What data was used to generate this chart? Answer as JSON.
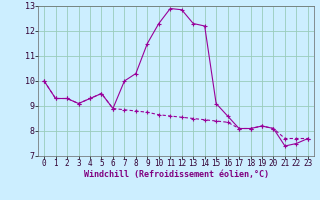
{
  "hours": [
    0,
    1,
    2,
    3,
    4,
    5,
    6,
    7,
    8,
    9,
    10,
    11,
    12,
    13,
    14,
    15,
    16,
    17,
    18,
    19,
    20,
    21,
    22,
    23
  ],
  "curve1": [
    10.0,
    9.3,
    9.3,
    9.1,
    9.3,
    9.5,
    8.9,
    10.0,
    10.3,
    11.5,
    12.3,
    12.9,
    12.85,
    12.3,
    12.2,
    9.1,
    8.6,
    8.1,
    8.1,
    8.2,
    8.1,
    7.4,
    7.5,
    7.7
  ],
  "curve2": [
    10.0,
    9.3,
    9.3,
    9.1,
    9.3,
    9.5,
    8.9,
    8.85,
    8.8,
    8.75,
    8.65,
    8.6,
    8.55,
    8.5,
    8.45,
    8.4,
    8.35,
    8.1,
    8.1,
    8.2,
    8.1,
    7.7,
    7.7,
    7.7
  ],
  "line_color": "#990099",
  "bg_color": "#cceeff",
  "grid_color": "#99ccbb",
  "xlabel": "Windchill (Refroidissement éolien,°C)",
  "ylim": [
    7,
    13
  ],
  "xlim": [
    -0.5,
    23.5
  ],
  "yticks": [
    7,
    8,
    9,
    10,
    11,
    12,
    13
  ],
  "xticks": [
    0,
    1,
    2,
    3,
    4,
    5,
    6,
    7,
    8,
    9,
    10,
    11,
    12,
    13,
    14,
    15,
    16,
    17,
    18,
    19,
    20,
    21,
    22,
    23
  ],
  "tick_fontsize": 5.5,
  "xlabel_fontsize": 6.0,
  "marker_size": 3.0,
  "line_width": 0.8
}
